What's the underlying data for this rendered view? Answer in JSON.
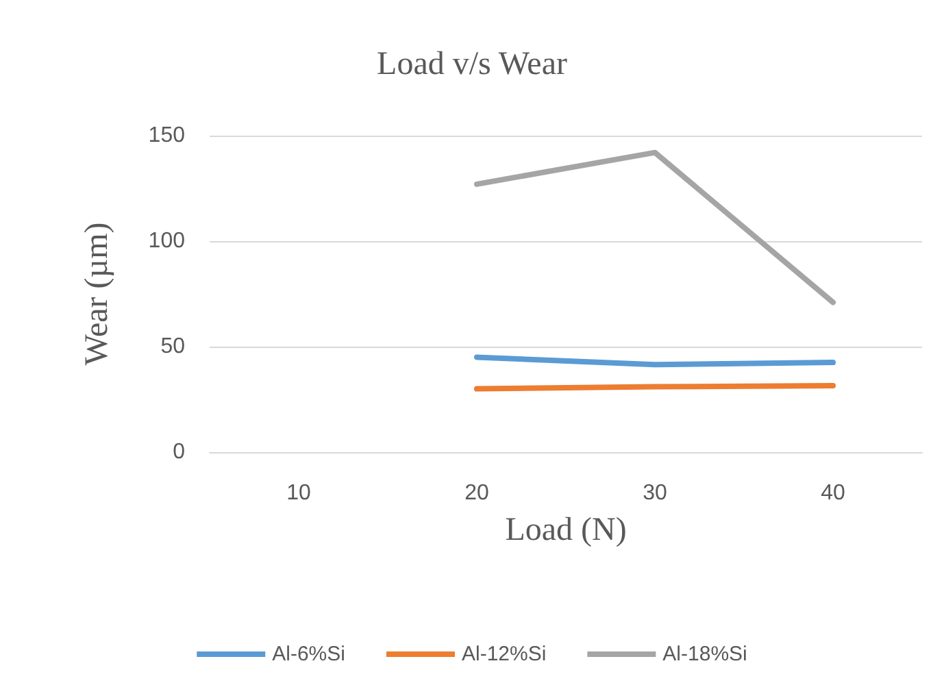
{
  "chart_data": {
    "type": "line",
    "title": "Load v/s Wear",
    "xlabel": "Load (N)",
    "ylabel": "Wear (µm)",
    "categories": [
      "10",
      "20",
      "30",
      "40"
    ],
    "series": [
      {
        "name": "Al-6%Si",
        "color": "#5b9bd5",
        "values": [
          null,
          45,
          41.5,
          42.5
        ]
      },
      {
        "name": "Al-12%Si",
        "color": "#ed7d31",
        "values": [
          null,
          30,
          31,
          31.5
        ]
      },
      {
        "name": "Al-18%Si",
        "color": "#a5a5a5",
        "values": [
          null,
          127,
          142,
          71
        ]
      }
    ],
    "ylim": [
      0,
      150
    ],
    "yticks": [
      0,
      50,
      100,
      150
    ],
    "grid": "y",
    "legend": "bottom",
    "marker": "none",
    "line_style": "solid"
  }
}
